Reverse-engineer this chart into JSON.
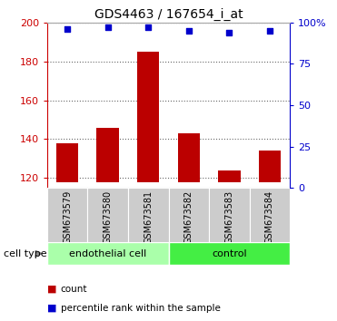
{
  "title": "GDS4463 / 167654_i_at",
  "samples": [
    "GSM673579",
    "GSM673580",
    "GSM673581",
    "GSM673582",
    "GSM673583",
    "GSM673584"
  ],
  "bar_values": [
    138,
    146,
    185,
    143,
    124,
    134
  ],
  "percentile_values": [
    96,
    97,
    97,
    95,
    94,
    95
  ],
  "ylim_left": [
    115,
    200
  ],
  "ylim_right": [
    0,
    100
  ],
  "yticks_left": [
    120,
    140,
    160,
    180,
    200
  ],
  "yticks_right": [
    0,
    25,
    50,
    75,
    100
  ],
  "bar_color": "#bb0000",
  "percentile_color": "#0000cc",
  "bar_bottom": 118,
  "groups": [
    {
      "label": "endothelial cell",
      "indices": [
        0,
        1,
        2
      ],
      "color": "#aaffaa"
    },
    {
      "label": "control",
      "indices": [
        3,
        4,
        5
      ],
      "color": "#44ee44"
    }
  ],
  "group_label": "cell type",
  "legend_items": [
    {
      "label": "count",
      "color": "#bb0000"
    },
    {
      "label": "percentile rank within the sample",
      "color": "#0000cc"
    }
  ],
  "background_color": "#ffffff",
  "plot_bg_color": "#ffffff",
  "tick_color_left": "#cc0000",
  "tick_color_right": "#0000cc",
  "label_box_color": "#cccccc",
  "separator_color": "#ffffff"
}
